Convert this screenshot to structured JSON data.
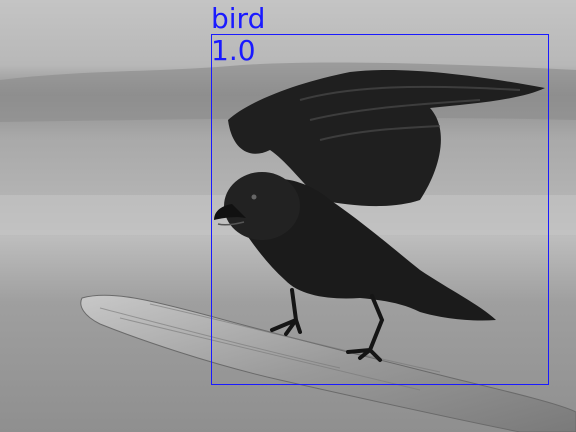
{
  "image": {
    "subject": "crow",
    "colors": {
      "sky": "#b9b9b9",
      "bird": "#1c1c1c",
      "branch": "#9a9a9a",
      "box": "#1a1aff"
    }
  },
  "detection": {
    "label": "bird",
    "score": "1.0"
  }
}
